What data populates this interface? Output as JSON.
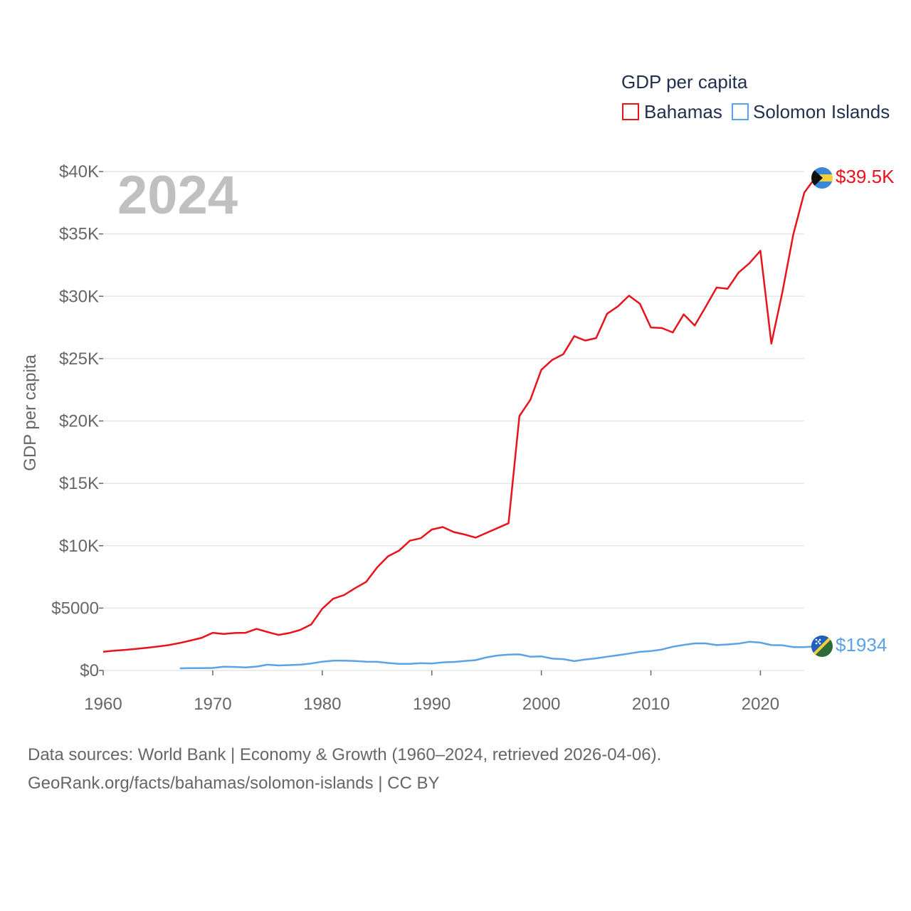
{
  "chart_data": {
    "type": "line",
    "legend_title": "GDP per capita",
    "ylabel": "GDP per capita",
    "year_label": "2024",
    "xlim": [
      1960,
      2024
    ],
    "ylim": [
      0,
      40000
    ],
    "x_ticks": [
      1960,
      1970,
      1980,
      1990,
      2000,
      2010,
      2020
    ],
    "y_ticks": [
      {
        "value": 0,
        "label": "$0"
      },
      {
        "value": 5000,
        "label": "$5000"
      },
      {
        "value": 10000,
        "label": "$10K"
      },
      {
        "value": 15000,
        "label": "$15K"
      },
      {
        "value": 20000,
        "label": "$20K"
      },
      {
        "value": 25000,
        "label": "$25K"
      },
      {
        "value": 30000,
        "label": "$30K"
      },
      {
        "value": 35000,
        "label": "$35K"
      },
      {
        "value": 40000,
        "label": "$40K"
      }
    ],
    "series": [
      {
        "name": "Bahamas",
        "color": "#e8131b",
        "end_label": "$39.5K",
        "flag": "bahamas-flag",
        "points": [
          [
            1960,
            1500
          ],
          [
            1961,
            1580
          ],
          [
            1962,
            1650
          ],
          [
            1963,
            1730
          ],
          [
            1964,
            1820
          ],
          [
            1965,
            1920
          ],
          [
            1966,
            2030
          ],
          [
            1967,
            2200
          ],
          [
            1968,
            2400
          ],
          [
            1969,
            2620
          ],
          [
            1970,
            3020
          ],
          [
            1971,
            2920
          ],
          [
            1972,
            3000
          ],
          [
            1973,
            3020
          ],
          [
            1974,
            3330
          ],
          [
            1975,
            3080
          ],
          [
            1976,
            2850
          ],
          [
            1977,
            3000
          ],
          [
            1978,
            3250
          ],
          [
            1979,
            3700
          ],
          [
            1980,
            4950
          ],
          [
            1981,
            5750
          ],
          [
            1982,
            6050
          ],
          [
            1983,
            6600
          ],
          [
            1984,
            7100
          ],
          [
            1985,
            8250
          ],
          [
            1986,
            9150
          ],
          [
            1987,
            9600
          ],
          [
            1988,
            10400
          ],
          [
            1989,
            10600
          ],
          [
            1990,
            11300
          ],
          [
            1991,
            11500
          ],
          [
            1992,
            11100
          ],
          [
            1993,
            10900
          ],
          [
            1994,
            10650
          ],
          [
            1997,
            11800
          ],
          [
            1998,
            20400
          ],
          [
            1999,
            21700
          ],
          [
            2000,
            24100
          ],
          [
            2001,
            24900
          ],
          [
            2002,
            25350
          ],
          [
            2003,
            26800
          ],
          [
            2004,
            26450
          ],
          [
            2005,
            26650
          ],
          [
            2006,
            28600
          ],
          [
            2007,
            29200
          ],
          [
            2008,
            30050
          ],
          [
            2009,
            29400
          ],
          [
            2010,
            27500
          ],
          [
            2011,
            27450
          ],
          [
            2012,
            27100
          ],
          [
            2013,
            28550
          ],
          [
            2014,
            27650
          ],
          [
            2015,
            29150
          ],
          [
            2016,
            30700
          ],
          [
            2017,
            30600
          ],
          [
            2018,
            31900
          ],
          [
            2019,
            32650
          ],
          [
            2020,
            33650
          ],
          [
            2021,
            26200
          ],
          [
            2022,
            30300
          ],
          [
            2023,
            34950
          ],
          [
            2024,
            38300
          ],
          [
            2025,
            39500
          ],
          [
            2026,
            39500
          ]
        ]
      },
      {
        "name": "Solomon Islands",
        "color": "#5ba3e6",
        "end_label": "$1934",
        "flag": "solomon-islands-flag",
        "points": [
          [
            1967,
            170
          ],
          [
            1968,
            180
          ],
          [
            1969,
            190
          ],
          [
            1970,
            200
          ],
          [
            1971,
            300
          ],
          [
            1972,
            280
          ],
          [
            1973,
            240
          ],
          [
            1974,
            310
          ],
          [
            1975,
            460
          ],
          [
            1976,
            400
          ],
          [
            1977,
            430
          ],
          [
            1978,
            460
          ],
          [
            1979,
            560
          ],
          [
            1980,
            700
          ],
          [
            1981,
            780
          ],
          [
            1982,
            790
          ],
          [
            1983,
            760
          ],
          [
            1984,
            700
          ],
          [
            1985,
            690
          ],
          [
            1986,
            600
          ],
          [
            1987,
            530
          ],
          [
            1988,
            530
          ],
          [
            1989,
            580
          ],
          [
            1990,
            560
          ],
          [
            1991,
            650
          ],
          [
            1992,
            680
          ],
          [
            1993,
            760
          ],
          [
            1994,
            830
          ],
          [
            1995,
            1050
          ],
          [
            1996,
            1200
          ],
          [
            1997,
            1270
          ],
          [
            1998,
            1290
          ],
          [
            1999,
            1100
          ],
          [
            2000,
            1130
          ],
          [
            2001,
            950
          ],
          [
            2002,
            910
          ],
          [
            2003,
            750
          ],
          [
            2004,
            880
          ],
          [
            2005,
            970
          ],
          [
            2006,
            1100
          ],
          [
            2007,
            1220
          ],
          [
            2008,
            1350
          ],
          [
            2009,
            1490
          ],
          [
            2010,
            1550
          ],
          [
            2011,
            1680
          ],
          [
            2012,
            1900
          ],
          [
            2013,
            2050
          ],
          [
            2014,
            2170
          ],
          [
            2015,
            2170
          ],
          [
            2016,
            2030
          ],
          [
            2017,
            2080
          ],
          [
            2018,
            2150
          ],
          [
            2019,
            2300
          ],
          [
            2020,
            2230
          ],
          [
            2021,
            2030
          ],
          [
            2022,
            2020
          ],
          [
            2023,
            1870
          ],
          [
            2024,
            1870
          ],
          [
            2025,
            1934
          ],
          [
            2026,
            1934
          ]
        ]
      }
    ]
  },
  "footer": {
    "line1": "Data sources: World Bank | Economy & Growth (1960–2024, retrieved 2026-04-06).",
    "line2": "GeoRank.org/facts/bahamas/solomon-islands | CC BY"
  }
}
